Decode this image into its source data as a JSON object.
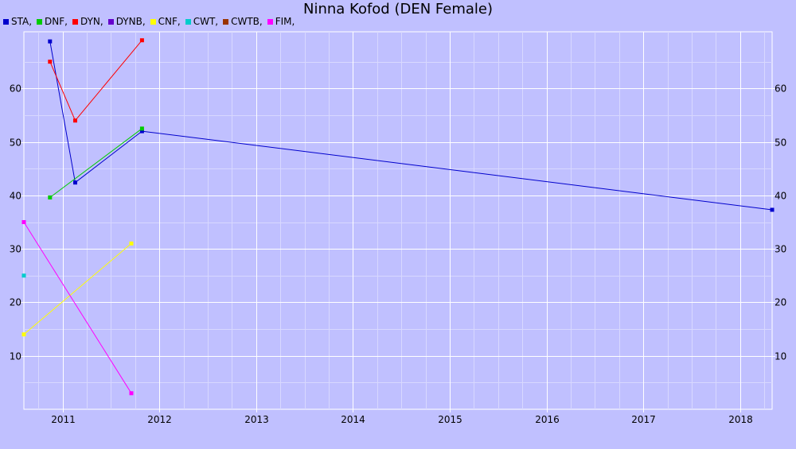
{
  "chart_data": {
    "type": "line",
    "title": "Ninna Kofod (DEN Female)",
    "legend": [
      "STA,",
      "DNF,",
      "DYN,",
      "DYNB,",
      "CNF,",
      "CWT,",
      "CWTB,",
      "FIM,"
    ],
    "legend_colors": [
      "#0000cc",
      "#00cc00",
      "#ff0000",
      "#6600cc",
      "#ffff00",
      "#00cccc",
      "#993300",
      "#ff00ff"
    ],
    "xlim": [
      2010.6,
      2018.33
    ],
    "ylim": [
      0,
      70
    ],
    "x_ticks": [
      "2011",
      "2012",
      "2013",
      "2014",
      "2015",
      "2016",
      "2017",
      "2018"
    ],
    "y_ticks": [
      "10",
      "20",
      "30",
      "40",
      "50",
      "60"
    ],
    "grid": true,
    "series": [
      {
        "name": "STA,",
        "color": "#0000cc",
        "points": [
          [
            2010.87,
            68.8
          ],
          [
            2011.13,
            42.4
          ],
          [
            2011.82,
            52.0
          ],
          [
            2018.33,
            37.3
          ]
        ]
      },
      {
        "name": "DNF,",
        "color": "#00cc00",
        "points": [
          [
            2010.87,
            39.6
          ],
          [
            2011.82,
            52.5
          ]
        ]
      },
      {
        "name": "DYN,",
        "color": "#ff0000",
        "points": [
          [
            2010.87,
            65.0
          ],
          [
            2011.13,
            54.0
          ],
          [
            2011.82,
            69.0
          ]
        ]
      },
      {
        "name": "DYNB,",
        "color": "#6600cc",
        "points": []
      },
      {
        "name": "CNF,",
        "color": "#ffff00",
        "points": [
          [
            2010.6,
            14.0
          ],
          [
            2011.71,
            31.0
          ]
        ]
      },
      {
        "name": "CWT,",
        "color": "#00cccc",
        "points": [
          [
            2010.6,
            25.0
          ]
        ]
      },
      {
        "name": "CWTB,",
        "color": "#993300",
        "points": []
      },
      {
        "name": "FIM,",
        "color": "#ff00ff",
        "points": [
          [
            2010.6,
            35.0
          ],
          [
            2011.71,
            3.0
          ]
        ]
      }
    ]
  }
}
